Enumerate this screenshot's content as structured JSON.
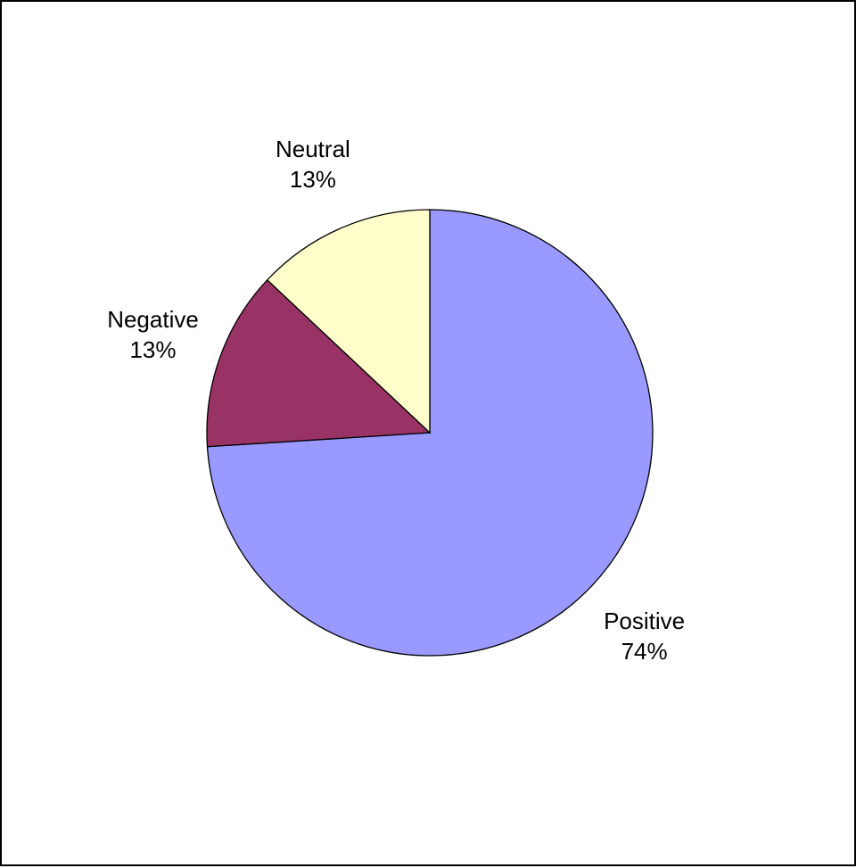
{
  "chart_data": {
    "type": "pie",
    "title": "",
    "start_angle_deg": 0,
    "direction": "clockwise",
    "slices": [
      {
        "label": "Positive",
        "value": 74,
        "value_label": "74%",
        "color": "#9999ff"
      },
      {
        "label": "Negative",
        "value": 13,
        "value_label": "13%",
        "color": "#993366"
      },
      {
        "label": "Neutral",
        "value": 13,
        "value_label": "13%",
        "color": "#ffffcc"
      }
    ],
    "stroke_color": "#000000",
    "legend": "none"
  }
}
